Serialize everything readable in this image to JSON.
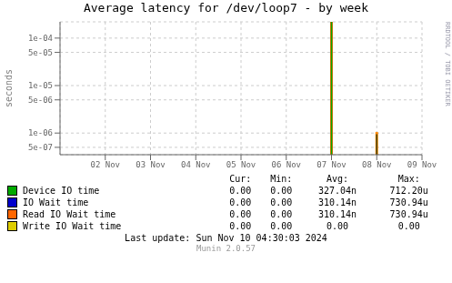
{
  "chart_data": {
    "type": "line",
    "title": "Average latency for /dev/loop7 - by week",
    "y_label": "seconds",
    "log": "y",
    "grid": true,
    "xlim": [
      0,
      8
    ],
    "xticks": [
      {
        "value": 1,
        "label": "02 Nov"
      },
      {
        "value": 2,
        "label": "03 Nov"
      },
      {
        "value": 3,
        "label": "04 Nov"
      },
      {
        "value": 4,
        "label": "05 Nov"
      },
      {
        "value": 5,
        "label": "06 Nov"
      },
      {
        "value": 6,
        "label": "07 Nov"
      },
      {
        "value": 7,
        "label": "08 Nov"
      },
      {
        "value": 8,
        "label": "09 Nov"
      }
    ],
    "ylim": [
      3.5e-07,
      0.00022
    ],
    "yticks": [
      {
        "value": 5e-07,
        "label": "5e-07"
      },
      {
        "value": 1e-06,
        "label": "1e-06"
      },
      {
        "value": 5e-06,
        "label": "5e-06"
      },
      {
        "value": 1e-05,
        "label": "1e-05"
      },
      {
        "value": 5e-05,
        "label": "5e-05"
      },
      {
        "value": 0.0001,
        "label": "1e-04"
      }
    ],
    "series": [
      {
        "color": "#ff6600",
        "x": [
          6,
          6
        ],
        "values": [
          3.5e-07,
          0.00022
        ]
      },
      {
        "color": "#00aa00",
        "x": [
          6,
          6
        ],
        "values": [
          3.5e-07,
          0.00022
        ]
      },
      {
        "color": "#ff8800",
        "x": [
          7,
          7
        ],
        "values": [
          3.5e-07,
          1.05e-06
        ]
      },
      {
        "color": "#444400",
        "x": [
          7,
          7
        ],
        "values": [
          3.5e-07,
          9.4075e-07
        ]
      }
    ],
    "table": {
      "headers": [
        "Cur:",
        "Min:",
        "Avg:",
        "Max:"
      ],
      "rows": [
        {
          "label": "Device IO time",
          "color": "#00aa00",
          "values": [
            "0.00",
            "0.00",
            "327.04n",
            "712.20u"
          ]
        },
        {
          "label": "IO Wait time",
          "color": "#0000cc",
          "values": [
            "0.00",
            "0.00",
            "310.14n",
            "730.94u"
          ]
        },
        {
          "label": "Read IO Wait time",
          "color": "#ff6600",
          "values": [
            "0.00",
            "0.00",
            "310.14n",
            "730.94u"
          ]
        },
        {
          "label": "Write IO Wait time",
          "color": "#ddcc00",
          "values": [
            "0.00",
            "0.00",
            "0.00",
            "0.00"
          ]
        }
      ]
    },
    "last_update": "Last update: Sun Nov 10 04:30:03 2024",
    "watermark": "Munin 2.0.57",
    "side_label": "RRDTOOL / TOBI OETIKER"
  }
}
